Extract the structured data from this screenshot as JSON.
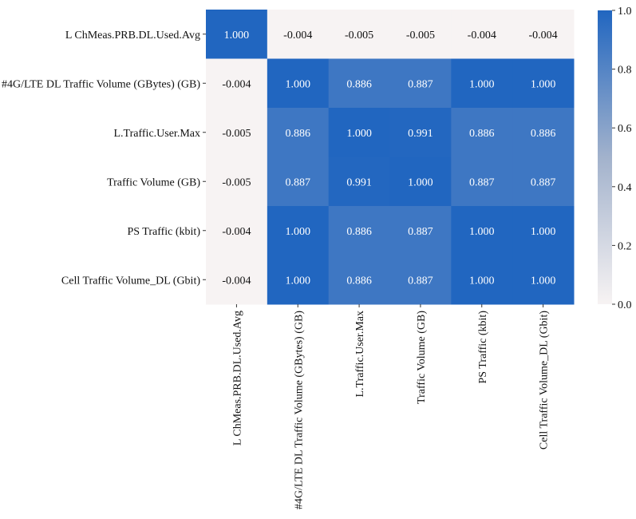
{
  "chart_data": {
    "type": "heatmap",
    "title": "",
    "xlabel": "",
    "ylabel": "",
    "row_labels": [
      "L ChMeas.PRB.DL.Used.Avg",
      "#4G/LTE DL Traffic Volume (GBytes) (GB)",
      "L.Traffic.User.Max",
      "Traffic Volume (GB)",
      "PS Traffic (kbit)",
      "Cell Traffic Volume_DL (Gbit)"
    ],
    "col_labels": [
      "L ChMeas.PRB.DL.Used.Avg",
      "#4G/LTE DL Traffic Volume (GBytes) (GB)",
      "L.Traffic.User.Max",
      "Traffic Volume (GB)",
      "PS Traffic (kbit)",
      "Cell Traffic Volume_DL (Gbit)"
    ],
    "values": [
      [
        1.0,
        -0.004,
        -0.005,
        -0.005,
        -0.004,
        -0.004
      ],
      [
        -0.004,
        1.0,
        0.886,
        0.887,
        1.0,
        1.0
      ],
      [
        -0.005,
        0.886,
        1.0,
        0.991,
        0.886,
        0.886
      ],
      [
        -0.005,
        0.887,
        0.991,
        1.0,
        0.887,
        0.887
      ],
      [
        -0.004,
        1.0,
        0.886,
        0.887,
        1.0,
        1.0
      ],
      [
        -0.004,
        1.0,
        0.886,
        0.887,
        1.0,
        1.0
      ]
    ],
    "value_format": "0.000",
    "colorbar": {
      "range": [
        0.0,
        1.0
      ],
      "ticks": [
        "0.0",
        "0.2",
        "0.4",
        "0.6",
        "0.8",
        "1.0"
      ],
      "colors": [
        "#f7f3f3",
        "#a2b2cc",
        "#2166c0"
      ]
    },
    "grid": false,
    "legend": "right"
  }
}
